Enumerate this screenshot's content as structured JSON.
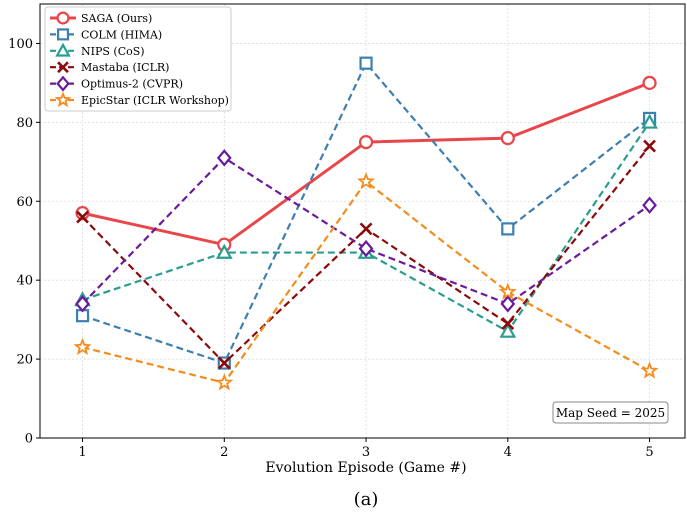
{
  "chart_data": {
    "type": "line",
    "x": [
      1,
      2,
      3,
      4,
      5
    ],
    "xlabel": "Evolution Episode (Game #)",
    "ylabel": "",
    "xlim": [
      0.7,
      5.25
    ],
    "ylim": [
      0,
      110
    ],
    "yticks": [
      0,
      20,
      40,
      60,
      80,
      100
    ],
    "xticks": [
      1,
      2,
      3,
      4,
      5
    ],
    "grid": true,
    "legend_position": "top-left",
    "annotation": "Map Seed = 2025",
    "caption": "(a)",
    "series": [
      {
        "name": "SAGA (Ours)",
        "values": [
          57,
          49,
          75,
          76,
          90
        ],
        "color": "#e8464a",
        "marker": "circle",
        "linestyle": "solid"
      },
      {
        "name": "COLM (HIMA)",
        "values": [
          31,
          19,
          95,
          53,
          81
        ],
        "color": "#3d7fb0",
        "marker": "square",
        "linestyle": "dashed"
      },
      {
        "name": "NIPS (CoS)",
        "values": [
          35,
          47,
          47,
          27,
          80
        ],
        "color": "#2a9d8f",
        "marker": "triangle",
        "linestyle": "dashed"
      },
      {
        "name": "Mastaba (ICLR)",
        "values": [
          56,
          19,
          53,
          29,
          74
        ],
        "color": "#8b0a0a",
        "marker": "x",
        "linestyle": "dashed"
      },
      {
        "name": "Optimus-2 (CVPR)",
        "values": [
          34,
          71,
          48,
          34,
          59
        ],
        "color": "#6a1b9a",
        "marker": "diamond",
        "linestyle": "dashed"
      },
      {
        "name": "EpicStar (ICLR Workshop)",
        "values": [
          23,
          14,
          65,
          37,
          17
        ],
        "color": "#f58c1e",
        "marker": "star",
        "linestyle": "dashed"
      }
    ]
  }
}
